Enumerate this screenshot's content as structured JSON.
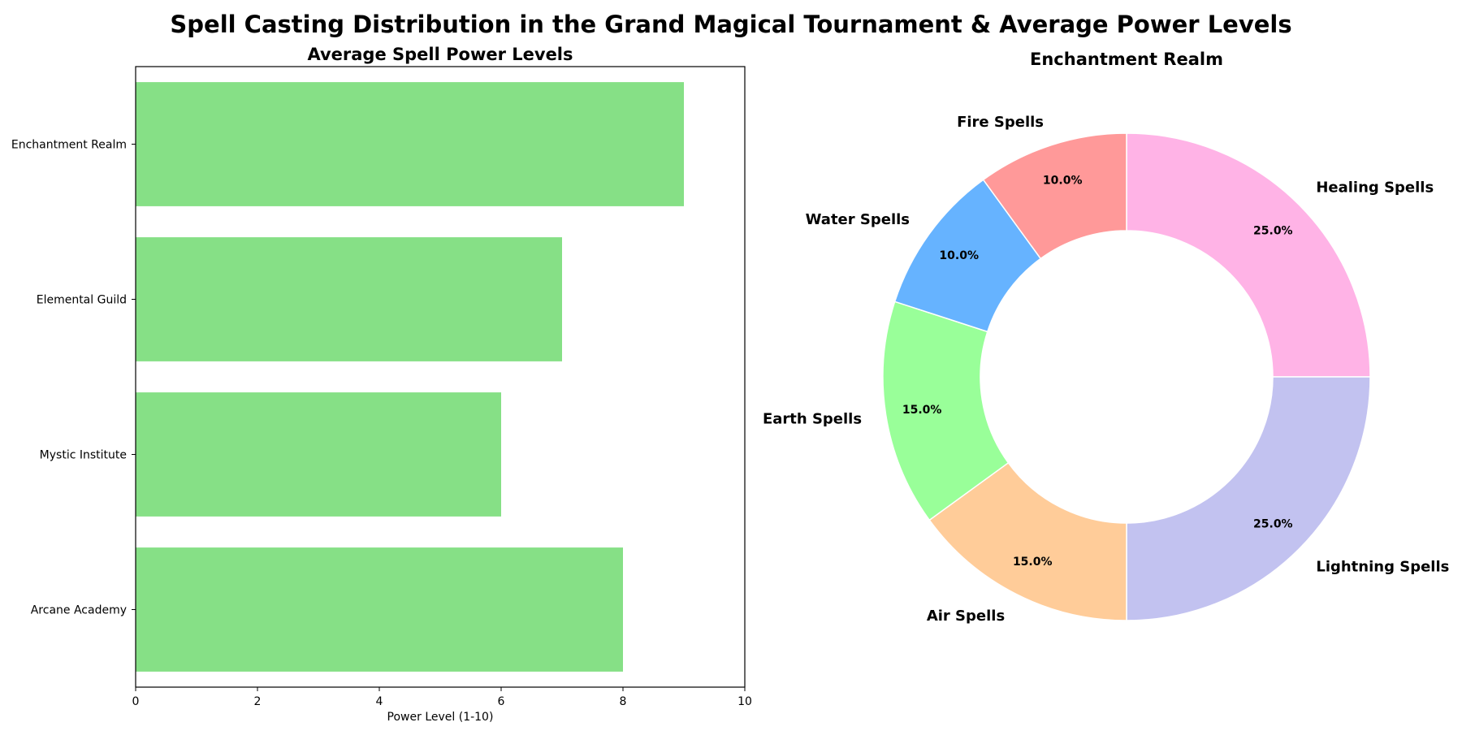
{
  "figure": {
    "title": "Spell Casting Distribution in the Grand Magical Tournament & Average Power Levels"
  },
  "chart_data": [
    {
      "type": "bar",
      "orientation": "horizontal",
      "title": "Average Spell Power Levels",
      "categories": [
        "Enchantment Realm",
        "Elemental Guild",
        "Mystic Institute",
        "Arcane Academy"
      ],
      "values": [
        9,
        7,
        6,
        8
      ],
      "xlabel": "Power Level (1-10)",
      "ylabel": "",
      "xlim": [
        0,
        10
      ],
      "xticks": [
        "0",
        "2",
        "4",
        "6",
        "8",
        "10"
      ],
      "color": "#86e086",
      "grid": false
    },
    {
      "type": "pie",
      "donut": true,
      "title": "Enchantment Realm",
      "labels": [
        "Healing Spells",
        "Lightning Spells",
        "Air Spells",
        "Earth Spells",
        "Water Spells",
        "Fire Spells"
      ],
      "values": [
        25,
        25,
        15,
        15,
        10,
        10
      ],
      "percent_labels": [
        "25.0%",
        "25.0%",
        "15.0%",
        "15.0%",
        "10.0%",
        "10.0%"
      ],
      "colors": [
        "#ffb3e6",
        "#c2c2f0",
        "#ffcc99",
        "#99ff99",
        "#66b3ff",
        "#ff9999"
      ],
      "direction": "clockwise",
      "start_angle": "top"
    }
  ]
}
